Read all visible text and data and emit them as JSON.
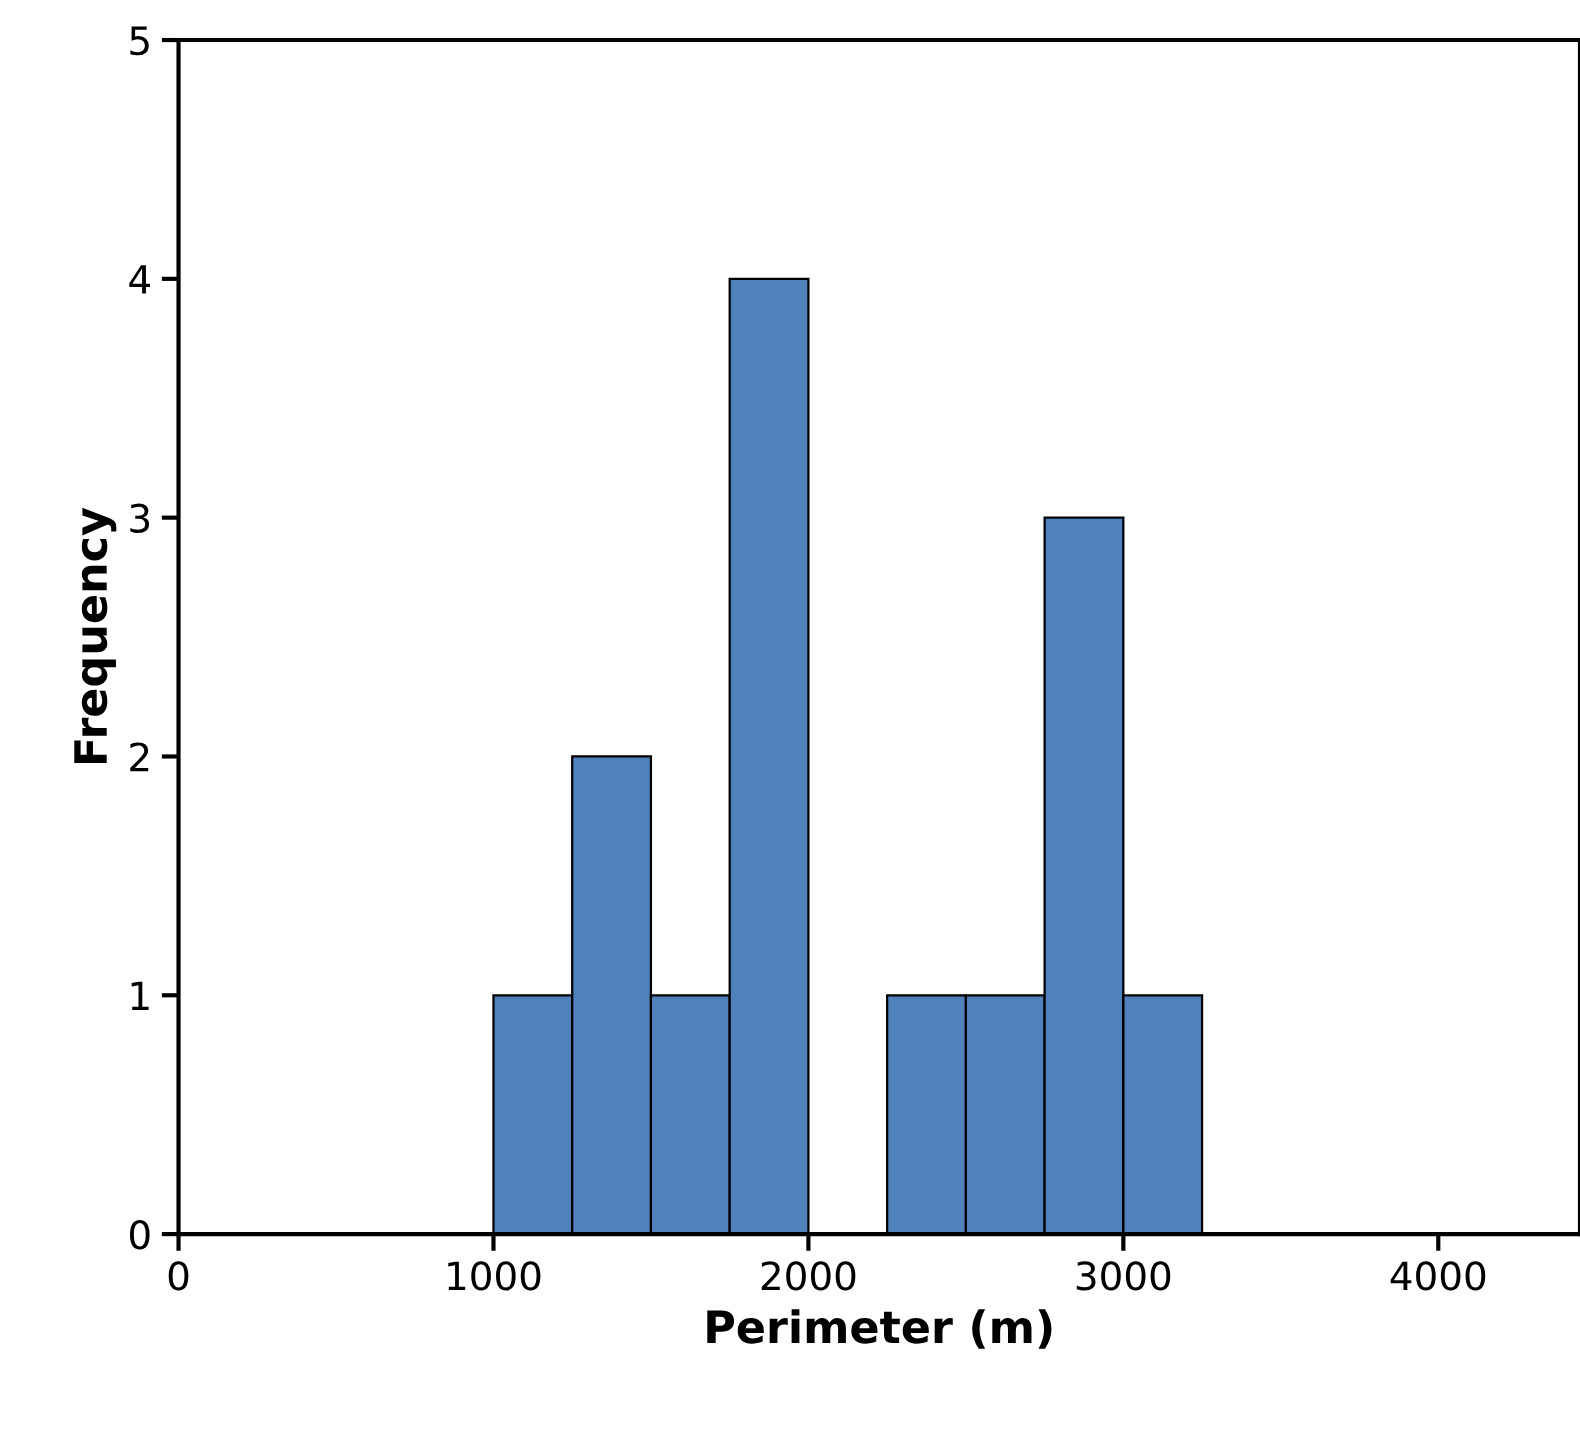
{
  "chart_data": {
    "type": "histogram",
    "xlabel": "Perimeter (m)",
    "ylabel": "Frequency",
    "bins": [
      1000,
      1250,
      1500,
      1750,
      2000,
      2250,
      2500,
      2750,
      3000,
      3250
    ],
    "values": [
      1,
      2,
      1,
      4,
      0,
      1,
      1,
      3,
      1
    ],
    "color": "#4f81bd",
    "xlim": [
      0,
      4450
    ],
    "xticks": [
      0,
      1000,
      2000,
      3000,
      4000
    ],
    "ylim": [
      0,
      5
    ],
    "yticks": [
      0,
      1,
      2,
      3,
      4,
      5
    ],
    "grid": false
  }
}
